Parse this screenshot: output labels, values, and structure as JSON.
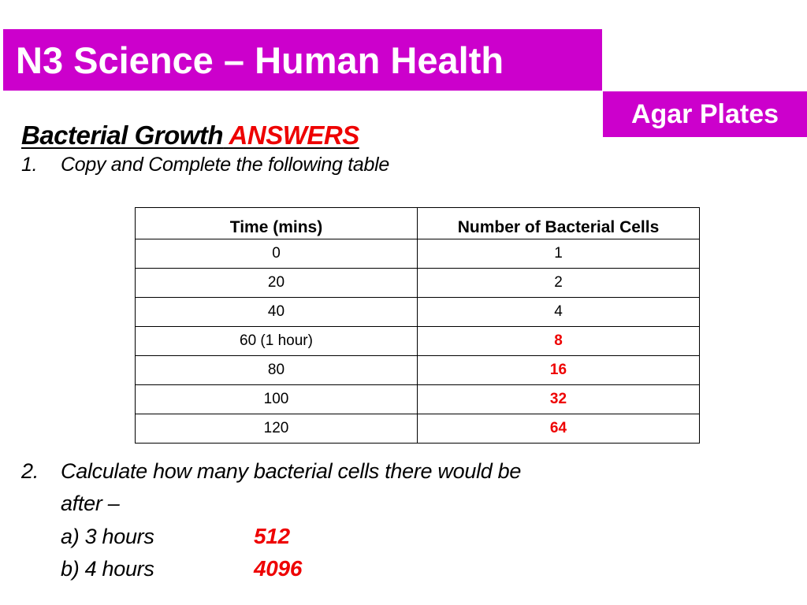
{
  "header": {
    "title": "N3 Science – Human Health",
    "tag": "Agar Plates"
  },
  "heading": {
    "main": "Bacterial Growth",
    "highlight": "ANSWERS"
  },
  "question1": {
    "number": "1.",
    "text": "Copy and Complete the following table"
  },
  "table": {
    "headers": [
      "Time (mins)",
      "Number of Bacterial Cells"
    ],
    "rows": [
      {
        "time": "0",
        "cells": "1",
        "answer": false
      },
      {
        "time": "20",
        "cells": "2",
        "answer": false
      },
      {
        "time": "40",
        "cells": "4",
        "answer": false
      },
      {
        "time": "60 (1 hour)",
        "cells": "8",
        "answer": true
      },
      {
        "time": "80",
        "cells": "16",
        "answer": true
      },
      {
        "time": "100",
        "cells": "32",
        "answer": true
      },
      {
        "time": "120",
        "cells": "64",
        "answer": true
      }
    ]
  },
  "question2": {
    "number": "2.",
    "line1": "Calculate how many bacterial cells there would be",
    "line2": "after –",
    "parts": [
      {
        "label": "a) 3 hours",
        "answer": "512"
      },
      {
        "label": "b) 4  hours",
        "answer": "4096"
      }
    ]
  },
  "colors": {
    "brand": "#cc00cc",
    "answer": "#ee0000"
  }
}
